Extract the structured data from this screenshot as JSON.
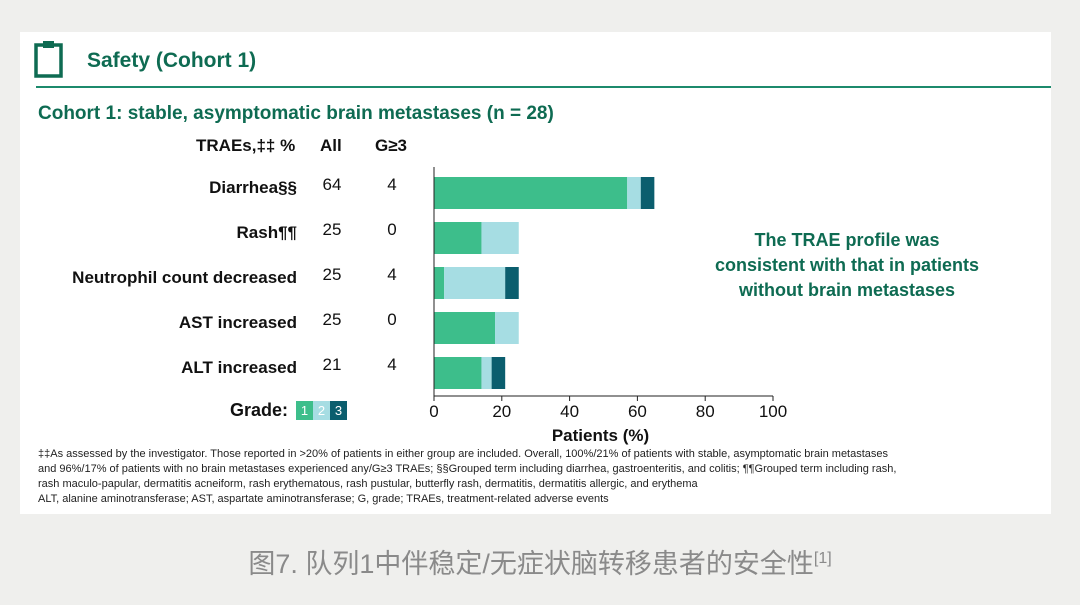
{
  "header": {
    "section_title": "Safety (Cohort 1)",
    "icon": "clipboard-icon"
  },
  "subtitle": "Cohort 1: stable, asymptomatic brain metastases (n = 28)",
  "columns": {
    "traes": "TRAEs,‡‡ %",
    "all": "All",
    "g3": "G≥3"
  },
  "rows": [
    {
      "label": "Diarrhea§§",
      "all": "64",
      "g3": "4"
    },
    {
      "label": "Rash¶¶",
      "all": "25",
      "g3": "0"
    },
    {
      "label": "Neutrophil count decreased",
      "all": "25",
      "g3": "4"
    },
    {
      "label": "AST increased",
      "all": "25",
      "g3": "0"
    },
    {
      "label": "ALT increased",
      "all": "21",
      "g3": "4"
    }
  ],
  "callout": [
    "The TRAE profile was",
    "consistent with that in patients",
    "without brain metastases"
  ],
  "grade_legend": {
    "label": "Grade:",
    "levels": [
      "1",
      "2",
      "3"
    ]
  },
  "colors": {
    "grade1": "#3dbe8b",
    "grade2": "#a6dde3",
    "grade3": "#0b5e6e",
    "brand": "#0e6b52"
  },
  "chart_data": {
    "type": "bar",
    "orientation": "horizontal",
    "stacked": true,
    "categories": [
      "Diarrhea§§",
      "Rash¶¶",
      "Neutrophil count decreased",
      "AST increased",
      "ALT increased"
    ],
    "series": [
      {
        "name": "1",
        "values": [
          57,
          14,
          3,
          18,
          14
        ]
      },
      {
        "name": "2",
        "values": [
          4,
          11,
          18,
          7,
          3
        ]
      },
      {
        "name": "3",
        "values": [
          4,
          0,
          4,
          0,
          4
        ]
      }
    ],
    "xlabel": "Patients (%)",
    "xlim": [
      0,
      100
    ],
    "xticks": [
      0,
      20,
      40,
      60,
      80,
      100
    ],
    "grid": false,
    "legend": "bottom-left"
  },
  "footnotes": [
    "‡‡As assessed by the investigator. Those reported in >20% of patients in either group are included. Overall, 100%/21% of patients with stable, asymptomatic brain metastases",
    "and 96%/17% of patients with no brain metastases experienced any/G≥3 TRAEs; §§Grouped term including diarrhea, gastroenteritis, and colitis; ¶¶Grouped term including rash,",
    "rash maculo-papular, dermatitis acneiform, rash erythematous, rash pustular, butterfly rash, dermatitis, dermatitis allergic, and erythema",
    "ALT, alanine aminotransferase; AST, aspartate aminotransferase; G, grade; TRAEs, treatment-related adverse events"
  ],
  "caption": {
    "text": "图7. 队列1中伴稳定/无症状脑转移患者的安全性",
    "ref": "[1]"
  }
}
